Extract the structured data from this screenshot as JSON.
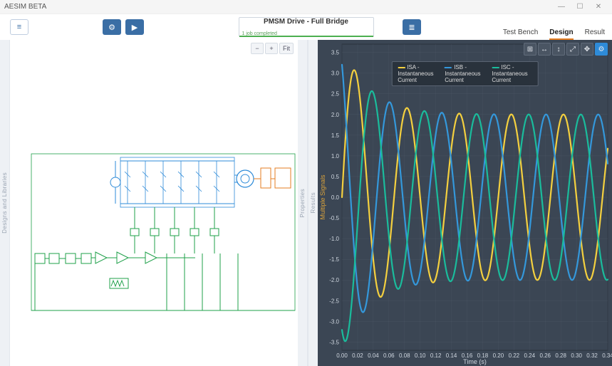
{
  "app": {
    "title": "AESIM BETA",
    "window_buttons": {
      "min": "—",
      "max": "☐",
      "close": "✕"
    }
  },
  "topbar": {
    "hamburger_glyph": "≡",
    "settings_glyph": "⚙",
    "play_glyph": "▶",
    "list_glyph": "≣",
    "title_pill": {
      "main": "PMSM Drive - Full Bridge",
      "sub": "1 job completed"
    },
    "tabs": [
      {
        "label": "Test Bench",
        "active": false
      },
      {
        "label": "Design",
        "active": true
      },
      {
        "label": "Result",
        "active": false
      }
    ]
  },
  "rails": {
    "left": "Designs and Libraries",
    "mid": "Properties",
    "results": "Results"
  },
  "schematic": {
    "zoom": {
      "out": "−",
      "in": "+",
      "fit": "Fit"
    },
    "colors": {
      "power": "#2e8bd8",
      "control": "#1fa04a",
      "load": "#e67e22",
      "canvas": "#ffffff"
    }
  },
  "chart": {
    "background": "#3b4654",
    "plot_background": "#3b4654",
    "grid_color": "#55606e",
    "x": {
      "label": "Time (s)",
      "min": 0.0,
      "max": 0.34,
      "tick_step": 0.02,
      "label_color": "#cfd6df"
    },
    "y": {
      "label": "Multiple Signals",
      "min": -3.7,
      "max": 3.7,
      "tick_step": 0.5,
      "label_color": "#d9a23b"
    },
    "series": [
      {
        "name": "ISA",
        "label": "ISA - Instantaneous Current",
        "color": "#f4d03f",
        "amplitude0": 3.7,
        "amplitude_ss": 2.0,
        "phase_deg": 0,
        "freq_hz": 15,
        "linewidth": 2.2
      },
      {
        "name": "ISB",
        "label": "ISB - Instantaneous Current",
        "color": "#3498db",
        "amplitude0": 3.7,
        "amplitude_ss": 2.0,
        "phase_deg": 120,
        "freq_hz": 15,
        "linewidth": 2.2
      },
      {
        "name": "ISC",
        "label": "ISC - Instantaneous Current",
        "color": "#1abc9c",
        "amplitude0": 3.7,
        "amplitude_ss": 2.0,
        "phase_deg": 240,
        "freq_hz": 15,
        "linewidth": 2.2
      }
    ],
    "decay_tau_s": 0.035,
    "toolbar_glyphs": {
      "reset": "⊞",
      "xzoom": "↔",
      "yzoom": "↕",
      "expand": "⤢",
      "pan": "✥",
      "gear": "⚙"
    }
  }
}
